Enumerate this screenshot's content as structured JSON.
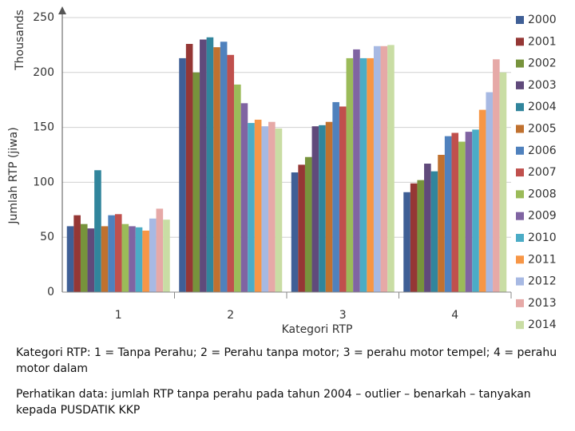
{
  "chart_data": {
    "type": "bar",
    "y_label_unit": "Thousands",
    "y_label": "Jumlah RTP (jiwa)",
    "x_label": "Kategori RTP",
    "categories": [
      "1",
      "2",
      "3",
      "4"
    ],
    "ylim": [
      0,
      250
    ],
    "yticks": [
      0,
      50,
      100,
      150,
      200,
      250
    ],
    "grid": true,
    "series": [
      {
        "name": "2000",
        "color": "#3F5F96",
        "values": [
          60,
          213,
          109,
          91
        ]
      },
      {
        "name": "2001",
        "color": "#953735",
        "values": [
          70,
          226,
          116,
          99
        ]
      },
      {
        "name": "2002",
        "color": "#77933C",
        "values": [
          62,
          200,
          123,
          102
        ]
      },
      {
        "name": "2003",
        "color": "#604A7B",
        "values": [
          58,
          230,
          151,
          117
        ]
      },
      {
        "name": "2004",
        "color": "#31859C",
        "values": [
          111,
          232,
          152,
          110
        ]
      },
      {
        "name": "2005",
        "color": "#C0712F",
        "values": [
          60,
          223,
          155,
          125
        ]
      },
      {
        "name": "2006",
        "color": "#4F81BD",
        "values": [
          70,
          228,
          173,
          142
        ]
      },
      {
        "name": "2007",
        "color": "#C0504D",
        "values": [
          71,
          216,
          169,
          145
        ]
      },
      {
        "name": "2008",
        "color": "#9BBB59",
        "values": [
          62,
          189,
          213,
          137
        ]
      },
      {
        "name": "2009",
        "color": "#8064A2",
        "values": [
          60,
          172,
          221,
          146
        ]
      },
      {
        "name": "2010",
        "color": "#4BACC6",
        "values": [
          59,
          154,
          213,
          148
        ]
      },
      {
        "name": "2011",
        "color": "#F79646",
        "values": [
          56,
          157,
          213,
          166
        ]
      },
      {
        "name": "2012",
        "color": "#A7B9E3",
        "values": [
          67,
          151,
          224,
          182
        ]
      },
      {
        "name": "2013",
        "color": "#E6A9A7",
        "values": [
          76,
          155,
          224,
          212
        ]
      },
      {
        "name": "2014",
        "color": "#C9DDA4",
        "values": [
          66,
          149,
          225,
          200
        ]
      }
    ]
  },
  "notes": [
    "Kategori RTP: 1 = Tanpa Perahu; 2 = Perahu tanpa motor; 3 = perahu motor tempel; 4 = perahu motor dalam",
    "Perhatikan data: jumlah RTP tanpa perahu pada tahun 2004 – outlier – benarkah – tanyakan kepada PUSDATIK KKP"
  ]
}
